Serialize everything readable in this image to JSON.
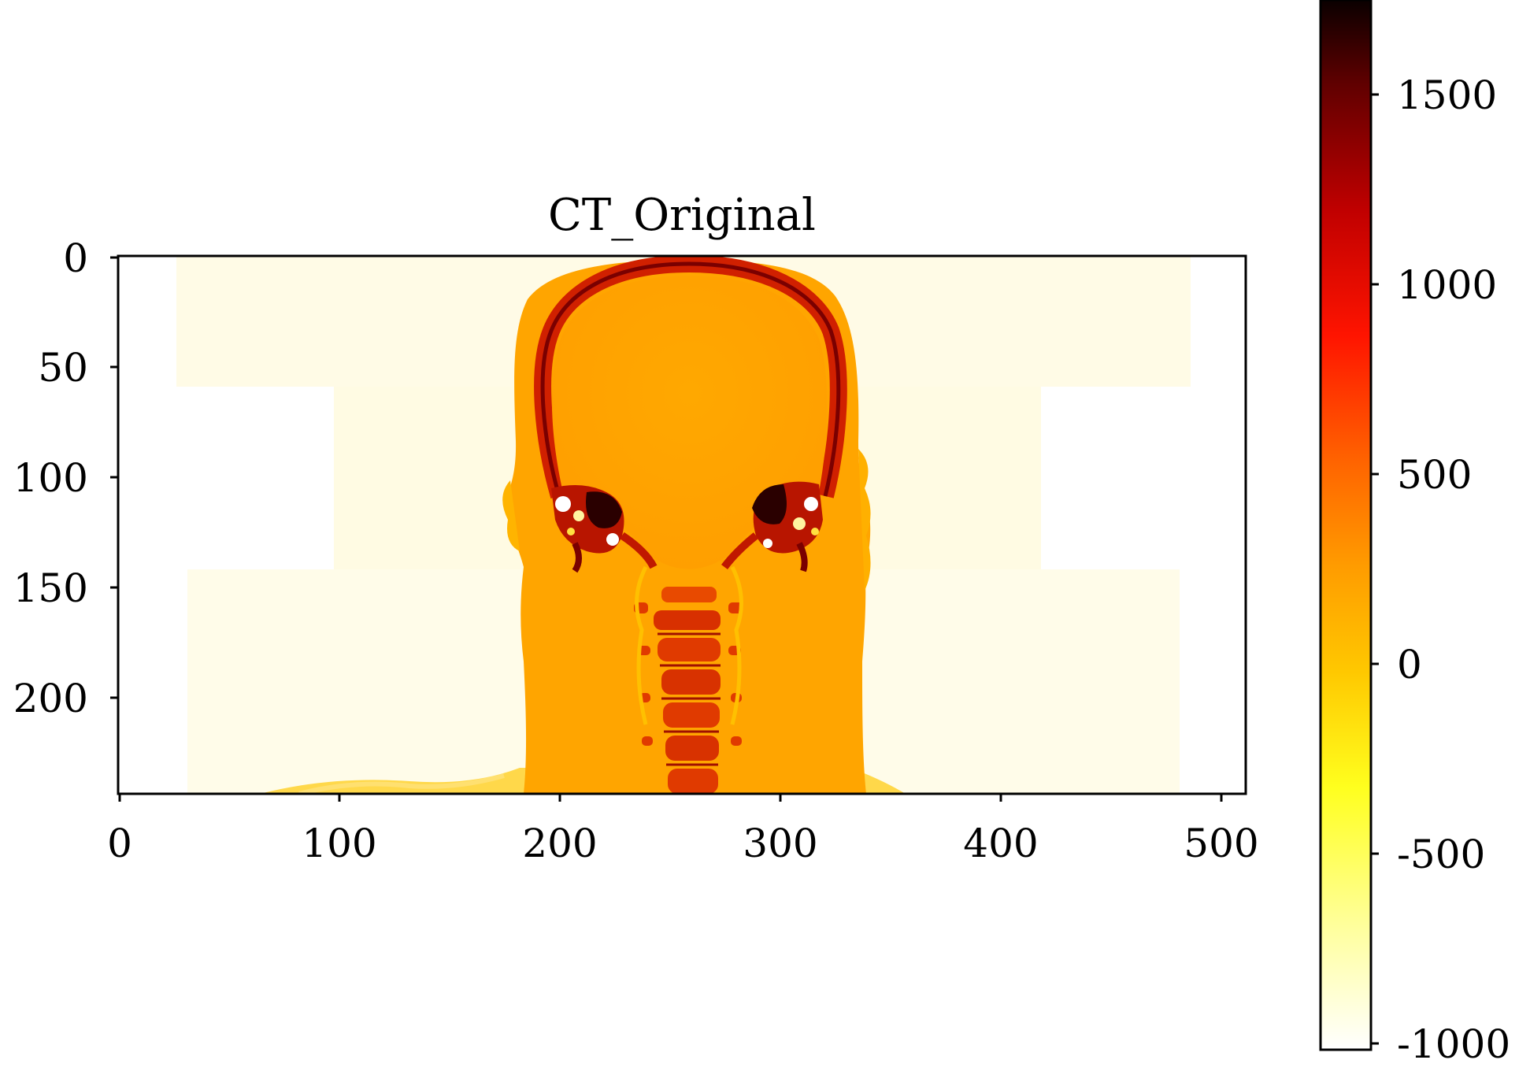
{
  "figure": {
    "title": "CT_Original",
    "x_ticks": [
      "0",
      "100",
      "200",
      "300",
      "400",
      "500"
    ],
    "y_ticks": [
      "0",
      "50",
      "100",
      "150",
      "200"
    ],
    "colorbar_ticks": [
      "1500",
      "1000",
      "500",
      "0",
      "-500",
      "-1000"
    ]
  },
  "chart_data": {
    "type": "heatmap",
    "title": "CT_Original",
    "xlim": [
      0,
      512
    ],
    "ylim": [
      245,
      0
    ],
    "x_ticks": [
      0,
      100,
      200,
      300,
      400,
      500
    ],
    "y_ticks": [
      0,
      50,
      100,
      150,
      200
    ],
    "colormap": "hot_r",
    "colorbar": {
      "range": [
        -1024,
        1720
      ],
      "ticks": [
        1500,
        1000,
        500,
        0,
        -500,
        -1000
      ]
    },
    "colors": {
      "background": "#fffef2",
      "soft_tissue": "#ffa400",
      "bone": "#c81a00",
      "dense_bone": "#1a0000"
    }
  }
}
